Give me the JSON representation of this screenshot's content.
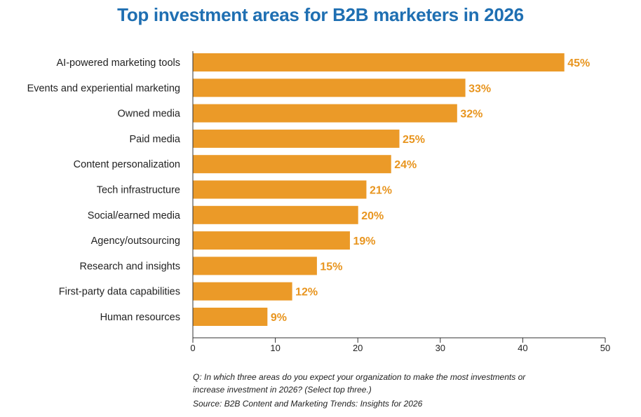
{
  "colors": {
    "title": "#1f6fb2",
    "bar": "#eb9a28",
    "value_label": "#e8951f",
    "axis": "#333333",
    "text": "#222222"
  },
  "chart_data": {
    "type": "bar",
    "orientation": "horizontal",
    "title": "Top investment areas for B2B marketers in 2026",
    "categories": [
      "AI-powered marketing tools",
      "Events and experiential marketing",
      "Owned media",
      "Paid media",
      "Content personalization",
      "Tech infrastructure",
      "Social/earned media",
      "Agency/outsourcing",
      "Research and insights",
      "First-party data capabilities",
      "Human resources"
    ],
    "values": [
      45,
      33,
      32,
      25,
      24,
      21,
      20,
      19,
      15,
      12,
      9
    ],
    "value_labels": [
      "45%",
      "33%",
      "32%",
      "25%",
      "24%",
      "21%",
      "20%",
      "19%",
      "15%",
      "12%",
      "9%"
    ],
    "xlim": [
      0,
      50
    ],
    "xticks": [
      0,
      10,
      20,
      30,
      40,
      50
    ],
    "xlabel": "",
    "ylabel": "",
    "grid": false,
    "legend": "none"
  },
  "footnote": {
    "question_line1": "Q: In which three areas do you expect your organization to make the most investments or",
    "question_line2": "increase investment in 2026? (Select top three.)",
    "source": "Source: B2B Content and Marketing Trends: Insights for 2026"
  }
}
